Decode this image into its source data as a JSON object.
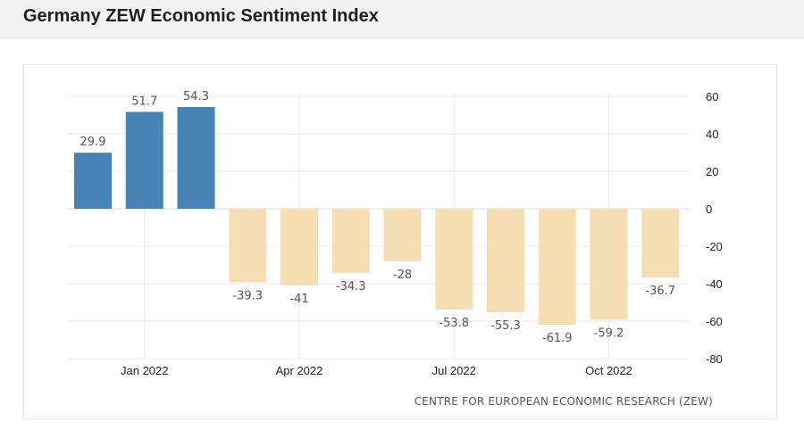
{
  "header": {
    "title": "Germany ZEW Economic Sentiment Index"
  },
  "source": "CENTRE FOR EUROPEAN ECONOMIC RESEARCH (ZEW)",
  "chart_data": {
    "type": "bar",
    "title": "Germany ZEW Economic Sentiment Index",
    "categories": [
      "Dec 2021",
      "Jan 2022",
      "Feb 2022",
      "Mar 2022",
      "Apr 2022",
      "May 2022",
      "Jun 2022",
      "Jul 2022",
      "Aug 2022",
      "Sep 2022",
      "Oct 2022",
      "Nov 2022"
    ],
    "values": [
      29.9,
      51.7,
      54.3,
      -39.3,
      -41,
      -34.3,
      -28,
      -53.8,
      -55.3,
      -61.9,
      -59.2,
      -36.7
    ],
    "data_labels": [
      "29.9",
      "51.7",
      "54.3",
      "-39.3",
      "-41",
      "-34.3",
      "-28",
      "-53.8",
      "-55.3",
      "-61.9",
      "-59.2",
      "-36.7"
    ],
    "x_tick_labels": [
      {
        "category": "Jan 2022",
        "label": "Jan 2022"
      },
      {
        "category": "Apr 2022",
        "label": "Apr 2022"
      },
      {
        "category": "Jul 2022",
        "label": "Jul 2022"
      },
      {
        "category": "Oct 2022",
        "label": "Oct 2022"
      }
    ],
    "y_ticks": [
      60,
      40,
      20,
      0,
      -20,
      -40,
      -60,
      -80
    ],
    "ylim": [
      -80,
      60
    ],
    "y_axis_side": "right",
    "grid": true,
    "legend": "none",
    "xlabel": "",
    "ylabel": "",
    "colors": {
      "positive": "#4682b4",
      "negative": "#f5deb3",
      "grid": "#e9e9e9"
    }
  }
}
